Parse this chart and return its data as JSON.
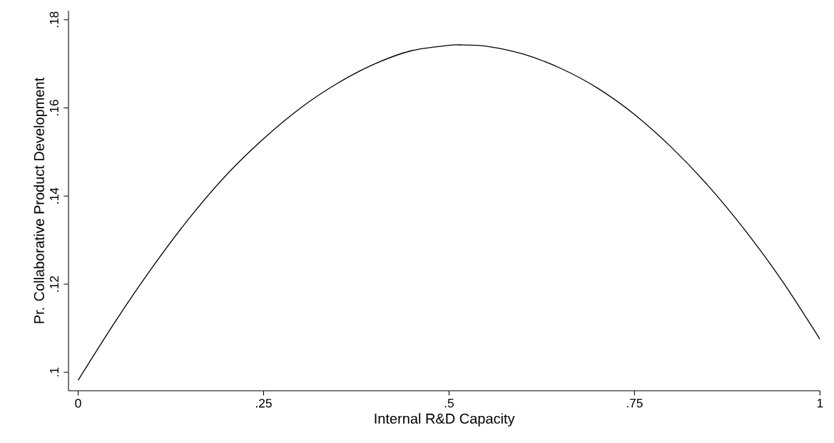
{
  "chart_data": {
    "type": "line",
    "xlabel": "Internal R&D Capacity",
    "ylabel": "Pr. Collaborative Product Development",
    "x": [
      0,
      0.05,
      0.1,
      0.15,
      0.2,
      0.25,
      0.3,
      0.35,
      0.4,
      0.45,
      0.5,
      0.514,
      0.55,
      0.6,
      0.65,
      0.7,
      0.75,
      0.8,
      0.85,
      0.9,
      0.95,
      1
    ],
    "series": [
      {
        "color": "#000000",
        "values": [
          0.0982,
          0.1115,
          0.1238,
          0.135,
          0.1448,
          0.153,
          0.16,
          0.1656,
          0.17,
          0.173,
          0.1742,
          0.1743,
          0.174,
          0.1722,
          0.169,
          0.1645,
          0.1585,
          0.151,
          0.1422,
          0.132,
          0.1205,
          0.1075
        ]
      }
    ],
    "xlim": [
      -0.013,
      1.0
    ],
    "ylim": [
      0.0958,
      0.182
    ],
    "xticks": [
      {
        "value": 0,
        "label": "0"
      },
      {
        "value": 0.25,
        "label": ".25"
      },
      {
        "value": 0.5,
        "label": ".5"
      },
      {
        "value": 0.75,
        "label": ".75"
      },
      {
        "value": 1,
        "label": "1"
      }
    ],
    "yticks": [
      {
        "value": 0.1,
        "label": ".1"
      },
      {
        "value": 0.12,
        "label": ".12"
      },
      {
        "value": 0.14,
        "label": ".14"
      },
      {
        "value": 0.16,
        "label": ".16"
      },
      {
        "value": 0.18,
        "label": ".18"
      }
    ],
    "grid": false,
    "marker": "none",
    "line_style": "solid"
  }
}
